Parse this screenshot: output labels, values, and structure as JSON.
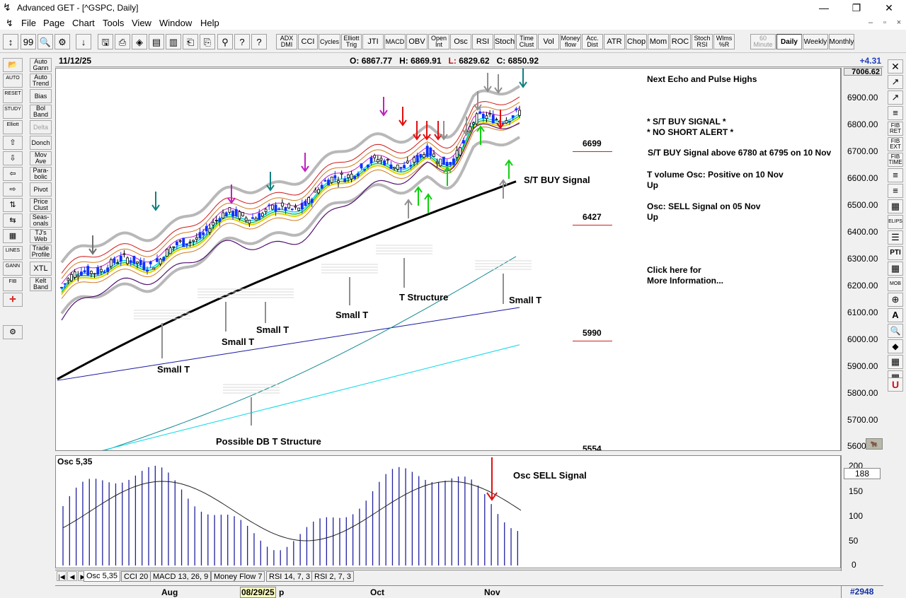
{
  "window": {
    "title": "Advanced GET - [^GSPC, Daily]",
    "minimize_glyph": "—",
    "restore_glyph": "❐",
    "close_glyph": "✕"
  },
  "menu": {
    "items": [
      "File",
      "Page",
      "Chart",
      "Tools",
      "View",
      "Window",
      "Help"
    ],
    "mdi_controls": [
      "–",
      "▫",
      "×"
    ]
  },
  "toolbar": {
    "icon_buttons": [
      "↕",
      "99",
      "🔍",
      "⚙",
      "↓",
      "🖫",
      "⎙",
      "◈",
      "▤",
      "▥",
      "⎗",
      "⎘",
      "⚲",
      "?",
      "?"
    ],
    "indicator_buttons": [
      "ADX DMI",
      "CCI",
      "Cycles",
      "Elliott Trig",
      "JTI",
      "MACD",
      "OBV",
      "Open Int",
      "Osc",
      "RSI",
      "Stoch",
      "Time Clust",
      "Vol",
      "Money flow",
      "Acc. Dist",
      "ATR",
      "Chop",
      "Mom",
      "ROC",
      "Stoch RSI",
      "Wlms %R"
    ],
    "period_buttons": [
      "60 Minute",
      "Daily",
      "Weekly",
      "Monthly"
    ],
    "selected_period": "Daily"
  },
  "left_tools": {
    "col1": [
      "📂",
      "AUTO",
      "RESET",
      "STUDY",
      "Elliott",
      "⇧",
      "⇩",
      "⇦",
      "⇨",
      "⇅",
      "⇆",
      "▦",
      "LINES",
      "GANN",
      "FIB",
      "✛",
      "⚙"
    ],
    "col2": [
      "Auto Gann",
      "Auto Trend",
      "Bias",
      "Bol Band",
      "Delta",
      "Donch",
      "Mov Ave",
      "Para-bolic",
      "Pivot",
      "Price Clust",
      "Seas-onals",
      "TJ's Web",
      "Trade Profile",
      "XTL",
      "Kelt Band"
    ]
  },
  "right_tools": [
    "✕",
    "↗",
    "↗",
    "≡",
    "FIB RET",
    "FIB EXT",
    "FIB TIME",
    "≡",
    "≡",
    "▦",
    "ELIPS",
    "☰",
    "PTI",
    "▦",
    "MOB",
    "⊕",
    "A",
    "🔍",
    "◆",
    "▦",
    "▦",
    "U"
  ],
  "info": {
    "date": "11/12/25",
    "open_label": "O:",
    "open": "6867.77",
    "high_label": "H:",
    "high": "6869.91",
    "low_label": "L:",
    "low": "6829.62",
    "close_label": "C:",
    "close": "6850.92",
    "change": "+4.31"
  },
  "price_scale": {
    "top_box": "7006.62",
    "ticks": [
      "6900.00",
      "6800.00",
      "6700.00",
      "6600.00",
      "6500.00",
      "6400.00",
      "6300.00",
      "6200.00",
      "6100.00",
      "6000.00",
      "5900.00",
      "5800.00",
      "5700.00",
      "5600.00"
    ],
    "tick_values": [
      6900,
      6800,
      6700,
      6600,
      6500,
      6400,
      6300,
      6200,
      6100,
      6000,
      5900,
      5800,
      5700,
      5600
    ],
    "bottom_icon": "🐂"
  },
  "annotations": {
    "small_t_1": "Small T",
    "small_t_2": "Small T",
    "small_t_3": "Small T",
    "small_t_4": "Small T",
    "small_t_5": "Small T",
    "t_structure": "T Structure",
    "possible_db": "Possible DB T Structure",
    "st_buy": "S/T BUY Signal",
    "osc_sell": "Osc SELL Signal"
  },
  "levels": [
    {
      "label": "6699",
      "value": 6699
    },
    {
      "label": "6427",
      "value": 6427
    },
    {
      "label": "5990",
      "value": 5990
    },
    {
      "label": "5554",
      "value": 5554
    }
  ],
  "right_panel": {
    "heading": "Next Echo and Pulse Highs",
    "signal1": "* S/T BUY SIGNAL *",
    "signal2": "* NO SHORT ALERT *",
    "st_buy_line": "S/T BUY Signal above 6780 at 6795 on 10 Nov",
    "tvol_line1": "T volume Osc: Positive on 10 Nov",
    "tvol_line2": "Up",
    "osc_line1": "Osc: SELL Signal on 05 Nov",
    "osc_line2": "Up",
    "click_line1": "Click here for",
    "click_line2": "More Information..."
  },
  "osc": {
    "label": "Osc 5,35",
    "current_value": "188",
    "ticks": [
      "200",
      "150",
      "100",
      "50",
      "0"
    ],
    "tick_values": [
      200,
      150,
      100,
      50,
      0
    ]
  },
  "tabs": [
    "Osc 5,35",
    "CCI 20",
    "MACD 13, 26, 9",
    "Money Flow 7",
    "RSI 14, 7, 3",
    "RSI 2, 7, 3"
  ],
  "tab_arrows": [
    "|◀",
    "◀",
    "▶",
    "▶|"
  ],
  "date_axis": {
    "labels": [
      "Aug",
      "Oct",
      "Nov"
    ],
    "selected": "08/29/25",
    "selected_suffix": "p"
  },
  "bar_count": "#2948",
  "colors": {
    "candle_up": "#1030ff",
    "candle_down": "#000000",
    "ma_thick": "#000000",
    "band_gray": "#b8b8b8",
    "red_line": "#d01818",
    "orange_line": "#d07820",
    "magenta_line": "#c020c0",
    "purple_line": "#501070",
    "yellow_line": "#e8d000",
    "green_line": "#20c040",
    "cyan_line": "#00d8e8",
    "teal_line": "#108890",
    "navy_line": "#1818a0",
    "arrow_red": "#e01010",
    "arrow_green": "#10d010",
    "arrow_gray": "#909090",
    "osc_bar": "#2020a0"
  }
}
